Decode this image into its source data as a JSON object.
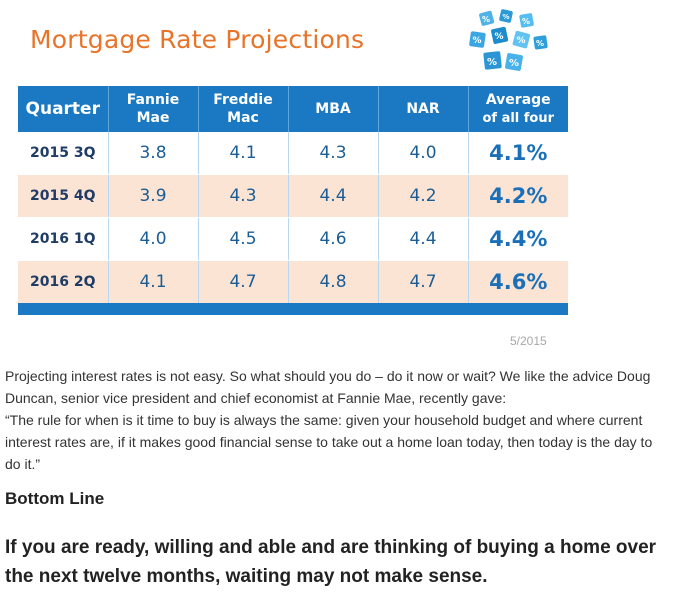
{
  "figure": {
    "title": "Mortgage Rate Projections",
    "date_note": "5/2015",
    "icon_name": "percent-dice-icon",
    "colors": {
      "title": "#e8742a",
      "header": "#1a79c2",
      "row_shade": "#fbe4d3",
      "value_text": "#1a5d96"
    }
  },
  "table": {
    "headers": [
      {
        "line1": "Quarter",
        "line2": ""
      },
      {
        "line1": "Fannie",
        "line2": "Mae"
      },
      {
        "line1": "Freddie",
        "line2": "Mac"
      },
      {
        "line1": "MBA",
        "line2": ""
      },
      {
        "line1": "NAR",
        "line2": ""
      },
      {
        "line1": "Average",
        "line2": "of all four"
      }
    ],
    "rows": [
      {
        "cells": [
          "2015 3Q",
          "3.8",
          "4.1",
          "4.3",
          "4.0",
          "4.1%"
        ]
      },
      {
        "cells": [
          "2015 4Q",
          "3.9",
          "4.3",
          "4.4",
          "4.2",
          "4.2%"
        ]
      },
      {
        "cells": [
          "2016 1Q",
          "4.0",
          "4.5",
          "4.6",
          "4.4",
          "4.4%"
        ]
      },
      {
        "cells": [
          "2016 2Q",
          "4.1",
          "4.7",
          "4.8",
          "4.7",
          "4.6%"
        ]
      }
    ]
  },
  "chart_data": {
    "type": "table",
    "title": "Mortgage Rate Projections",
    "columns": [
      "Quarter",
      "Fannie Mae",
      "Freddie Mac",
      "MBA",
      "NAR",
      "Average of all four"
    ],
    "categories": [
      "2015 3Q",
      "2015 4Q",
      "2016 1Q",
      "2016 2Q"
    ],
    "series": [
      {
        "name": "Fannie Mae",
        "values": [
          3.8,
          3.9,
          4.0,
          4.1
        ]
      },
      {
        "name": "Freddie Mac",
        "values": [
          4.1,
          4.3,
          4.5,
          4.7
        ]
      },
      {
        "name": "MBA",
        "values": [
          4.3,
          4.4,
          4.6,
          4.8
        ]
      },
      {
        "name": "NAR",
        "values": [
          4.0,
          4.2,
          4.4,
          4.7
        ]
      },
      {
        "name": "Average of all four",
        "values": [
          4.1,
          4.2,
          4.4,
          4.6
        ]
      }
    ]
  },
  "article": {
    "intro": "Projecting interest rates is not easy. So what should you do – do it now or wait? We like the advice Doug Duncan, senior vice president and chief economist at Fannie Mae, recently gave:",
    "quote": "“The rule for when is it time to buy is always the same: given your household budget and where current interest rates are, if it makes good financial sense to take out a home loan today, then today is the day to do it.”",
    "subheading": "Bottom Line",
    "closing": "If you are ready, willing and able and are thinking of buying a home over the next twelve months, waiting may not make sense."
  }
}
